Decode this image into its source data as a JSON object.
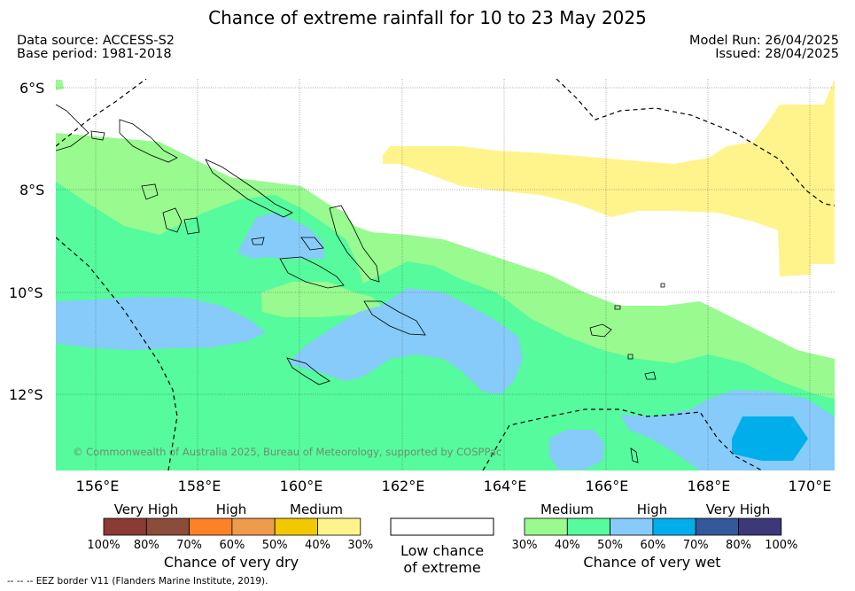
{
  "title": "Chance of extreme rainfall for 10 to 23 May 2025",
  "meta": {
    "data_source": "Data source: ACCESS-S2",
    "base_period": "Base period: 1981-2018",
    "model_run": "Model Run: 26/04/2025",
    "issued": "Issued: 28/04/2025"
  },
  "map": {
    "lat_labels": [
      "6°S",
      "8°S",
      "10°S",
      "12°S"
    ],
    "lon_labels": [
      "156°E",
      "158°E",
      "160°E",
      "162°E",
      "164°E",
      "166°E",
      "168°E",
      "170°E"
    ],
    "copyright": "© Commonwealth of Australia 2025, Bureau of Meteorology, supported by COSPPac"
  },
  "legend_dry": {
    "categories": [
      "Very High",
      "High",
      "Medium"
    ],
    "ticks": [
      "100%",
      "80%",
      "70%",
      "60%",
      "50%",
      "40%",
      "30%"
    ],
    "colors": [
      "#8b3a34",
      "#8c4c3c",
      "#ff8127",
      "#ef9b4d",
      "#f2c800",
      "#fff48b"
    ],
    "caption": "Chance of very dry"
  },
  "legend_low": {
    "line1": "Low chance",
    "line2": "of extreme",
    "color": "#ffffff"
  },
  "legend_wet": {
    "categories": [
      "Medium",
      "High",
      "Very High"
    ],
    "ticks": [
      "30%",
      "40%",
      "50%",
      "60%",
      "70%",
      "80%",
      "100%"
    ],
    "colors": [
      "#98fa8f",
      "#55fb9d",
      "#87cbfa",
      "#00aeec",
      "#34589b",
      "#3d3877"
    ],
    "caption": "Chance of very wet"
  },
  "footer": "--  --  -- EEZ border V11 (Flanders Marine Institute, 2019)."
}
